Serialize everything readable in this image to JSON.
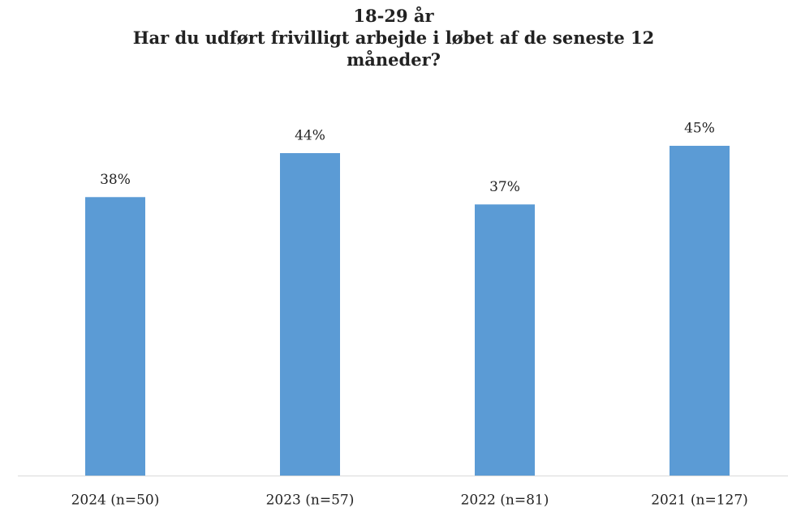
{
  "chart_data": {
    "type": "bar",
    "title": "18-29 år",
    "subtitle": "Har du udført frivilligt arbejde i løbet af de seneste 12 måneder?",
    "categories": [
      "2024 (n=50)",
      "2023 (n=57)",
      "2022 (n=81)",
      "2021 (n=127)"
    ],
    "values": [
      38,
      44,
      37,
      45
    ],
    "value_labels": [
      "38%",
      "44%",
      "37%",
      "45%"
    ],
    "color": "#5b9bd5"
  }
}
